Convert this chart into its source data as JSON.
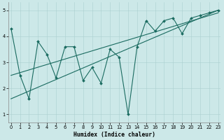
{
  "xlabel": "Humidex (Indice chaleur)",
  "bg_color": "#cce8e8",
  "line_color": "#1a6b60",
  "line1_x": [
    0,
    1,
    2,
    3,
    4,
    5,
    6,
    7,
    8,
    9,
    10,
    11,
    12,
    13,
    14,
    15,
    16,
    17,
    18,
    19,
    20,
    21,
    22,
    23
  ],
  "line1_y": [
    4.3,
    2.5,
    1.6,
    3.8,
    3.3,
    2.4,
    3.6,
    3.6,
    2.3,
    2.8,
    2.2,
    3.5,
    3.2,
    1.0,
    3.6,
    4.6,
    4.2,
    4.6,
    4.7,
    4.1,
    4.7,
    4.8,
    4.9,
    5.0
  ],
  "line2_x": [
    0,
    23
  ],
  "line2_y": [
    1.6,
    5.0
  ],
  "line3_x": [
    0,
    23
  ],
  "line3_y": [
    2.5,
    4.9
  ],
  "ylim": [
    0.7,
    5.3
  ],
  "xlim": [
    -0.3,
    23.3
  ],
  "yticks": [
    1,
    2,
    3,
    4,
    5
  ],
  "xticks": [
    0,
    1,
    2,
    3,
    4,
    5,
    6,
    7,
    8,
    9,
    10,
    11,
    12,
    13,
    14,
    15,
    16,
    17,
    18,
    19,
    20,
    21,
    22,
    23
  ]
}
